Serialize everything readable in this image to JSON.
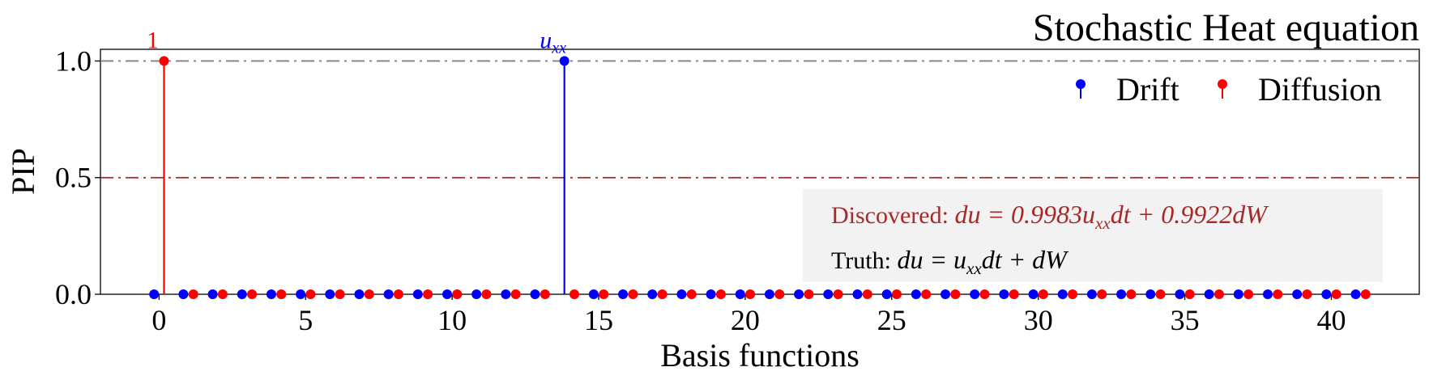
{
  "chart_data": {
    "type": "stem",
    "title": "Stochastic Heat equation",
    "xlabel": "Basis functions",
    "ylabel": "PIP",
    "xlim": [
      -2,
      43
    ],
    "ylim": [
      0,
      1.05
    ],
    "xticks": [
      0,
      5,
      10,
      15,
      20,
      25,
      30,
      35,
      40
    ],
    "yticks": [
      "0.0",
      "0.5",
      "1.0"
    ],
    "reference_lines": [
      {
        "y": 1.0,
        "color": "#808080",
        "style": "dash-dot"
      },
      {
        "y": 0.5,
        "color": "#b22222",
        "style": "dash-dot"
      }
    ],
    "legend_position": "top-right",
    "series": [
      {
        "name": "Drift",
        "color": "#0000ff",
        "x": [
          0,
          1,
          2,
          3,
          4,
          5,
          6,
          7,
          8,
          9,
          10,
          11,
          12,
          13,
          14,
          15,
          16,
          17,
          18,
          19,
          20,
          21,
          22,
          23,
          24,
          25,
          26,
          27,
          28,
          29,
          30,
          31,
          32,
          33,
          34,
          35,
          36,
          37,
          38,
          39,
          40,
          41
        ],
        "values": [
          0,
          0,
          0,
          0,
          0,
          0,
          0,
          0,
          0,
          0,
          0,
          0,
          0,
          0,
          1,
          0,
          0,
          0,
          0,
          0,
          0,
          0,
          0,
          0,
          0,
          0,
          0,
          0,
          0,
          0,
          0,
          0,
          0,
          0,
          0,
          0,
          0,
          0,
          0,
          0,
          0,
          0
        ]
      },
      {
        "name": "Diffusion",
        "color": "#ff0000",
        "x": [
          0,
          1,
          2,
          3,
          4,
          5,
          6,
          7,
          8,
          9,
          10,
          11,
          12,
          13,
          14,
          15,
          16,
          17,
          18,
          19,
          20,
          21,
          22,
          23,
          24,
          25,
          26,
          27,
          28,
          29,
          30,
          31,
          32,
          33,
          34,
          35,
          36,
          37,
          38,
          39,
          40,
          41
        ],
        "values": [
          1,
          0,
          0,
          0,
          0,
          0,
          0,
          0,
          0,
          0,
          0,
          0,
          0,
          0,
          0,
          0,
          0,
          0,
          0,
          0,
          0,
          0,
          0,
          0,
          0,
          0,
          0,
          0,
          0,
          0,
          0,
          0,
          0,
          0,
          0,
          0,
          0,
          0,
          0,
          0,
          0,
          0
        ]
      }
    ],
    "annotations": [
      {
        "text": "1",
        "series": "Diffusion",
        "x": 0,
        "y": 1
      },
      {
        "text_main": "u",
        "text_sub": "xx",
        "series": "Drift",
        "x": 14,
        "y": 1
      }
    ],
    "textbox": {
      "discovered_label": "Discovered: ",
      "discovered_eq": "du = 0.9983u",
      "discovered_sub": "xx",
      "discovered_rest": "dt + 0.9922dW",
      "discovered_color": "#a52a2a",
      "truth_label": "Truth: ",
      "truth_eq": "du = u",
      "truth_sub": "xx",
      "truth_rest": "dt + dW",
      "truth_color": "#000000",
      "background": "#f2f2f2"
    }
  }
}
